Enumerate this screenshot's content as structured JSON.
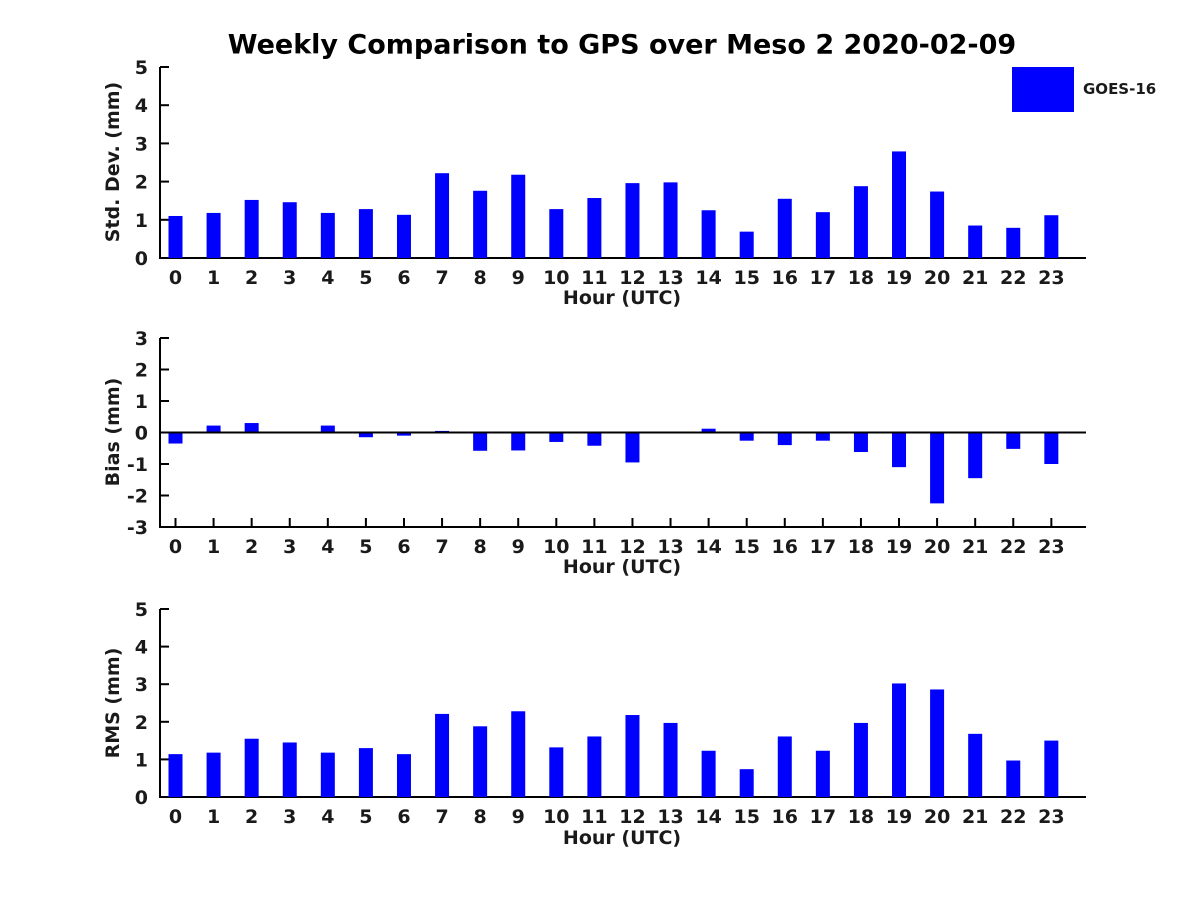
{
  "title": "Weekly Comparison to GPS over Meso 2 2020-02-09",
  "legend": {
    "label": "GOES-16",
    "position": "top-right"
  },
  "colors": {
    "bar": "#0000FF",
    "axis": "#000000",
    "label_text": "#1a1a1a",
    "title_text": "#000000"
  },
  "chart_data": [
    {
      "type": "bar",
      "name": "std-dev",
      "series": "GOES-16",
      "ylabel": "Std. Dev. (mm)",
      "xlabel": "Hour (UTC)",
      "categories": [
        "0",
        "1",
        "2",
        "3",
        "4",
        "5",
        "6",
        "7",
        "8",
        "9",
        "10",
        "11",
        "12",
        "13",
        "14",
        "15",
        "16",
        "17",
        "18",
        "19",
        "20",
        "21",
        "22",
        "23"
      ],
      "values": [
        1.1,
        1.18,
        1.52,
        1.46,
        1.18,
        1.28,
        1.13,
        2.22,
        1.76,
        2.18,
        1.28,
        1.57,
        1.96,
        1.98,
        1.25,
        0.69,
        1.55,
        1.2,
        1.88,
        2.79,
        1.74,
        0.85,
        0.79,
        1.12
      ],
      "ylim": [
        0,
        5
      ],
      "yticks": [
        0,
        1,
        2,
        3,
        4,
        5
      ],
      "grid": false
    },
    {
      "type": "bar",
      "name": "bias",
      "series": "GOES-16",
      "ylabel": "Bias (mm)",
      "xlabel": "Hour (UTC)",
      "categories": [
        "0",
        "1",
        "2",
        "3",
        "4",
        "5",
        "6",
        "7",
        "8",
        "9",
        "10",
        "11",
        "12",
        "13",
        "14",
        "15",
        "16",
        "17",
        "18",
        "19",
        "20",
        "21",
        "22",
        "23"
      ],
      "values": [
        -0.35,
        0.22,
        0.3,
        0.0,
        0.22,
        -0.15,
        -0.1,
        0.05,
        -0.58,
        -0.57,
        -0.3,
        -0.42,
        -0.95,
        0.0,
        0.12,
        -0.26,
        -0.4,
        -0.26,
        -0.62,
        -1.1,
        -2.25,
        -1.45,
        -0.52,
        -1.0
      ],
      "ylim": [
        -3,
        3
      ],
      "yticks": [
        -3,
        -2,
        -1,
        0,
        1,
        2,
        3
      ],
      "grid": false
    },
    {
      "type": "bar",
      "name": "rms",
      "series": "GOES-16",
      "ylabel": "RMS (mm)",
      "xlabel": "Hour (UTC)",
      "categories": [
        "0",
        "1",
        "2",
        "3",
        "4",
        "5",
        "6",
        "7",
        "8",
        "9",
        "10",
        "11",
        "12",
        "13",
        "14",
        "15",
        "16",
        "17",
        "18",
        "19",
        "20",
        "21",
        "22",
        "23"
      ],
      "values": [
        1.14,
        1.18,
        1.55,
        1.45,
        1.18,
        1.3,
        1.14,
        2.21,
        1.88,
        2.28,
        1.32,
        1.61,
        2.18,
        1.97,
        1.23,
        0.74,
        1.61,
        1.23,
        1.97,
        3.02,
        2.86,
        1.68,
        0.97,
        1.5
      ],
      "ylim": [
        0,
        5
      ],
      "yticks": [
        0,
        1,
        2,
        3,
        4,
        5
      ],
      "grid": false
    }
  ]
}
